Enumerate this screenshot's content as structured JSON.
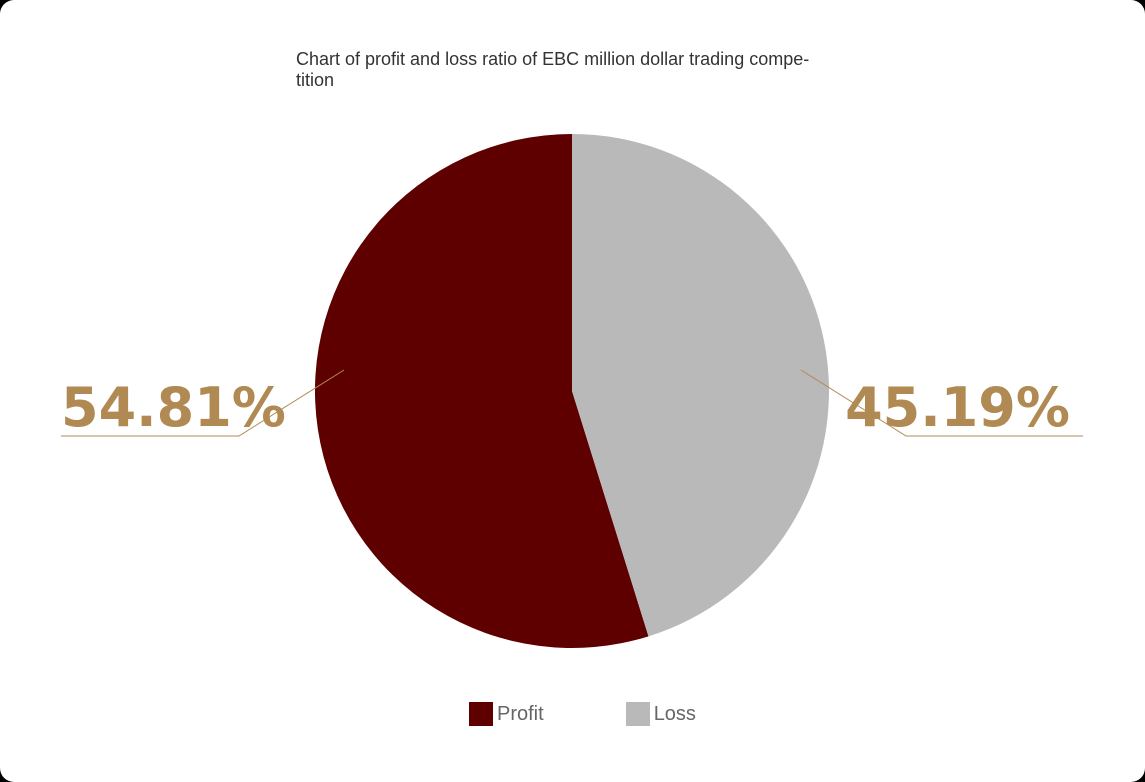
{
  "chart_data": {
    "type": "pie",
    "title": "Chart of profit and loss ratio of EBC million dollar trading compe-\ntition",
    "series": [
      {
        "name": "Profit",
        "value": 54.81,
        "label": "54.81%",
        "color": "#5e0000"
      },
      {
        "name": "Loss",
        "value": 45.19,
        "label": "45.19%",
        "color": "#bab9ba"
      }
    ],
    "label_color": "#b08a52",
    "legend_position": "bottom",
    "start_angle_deg": 0,
    "direction": "counterclockwise"
  }
}
